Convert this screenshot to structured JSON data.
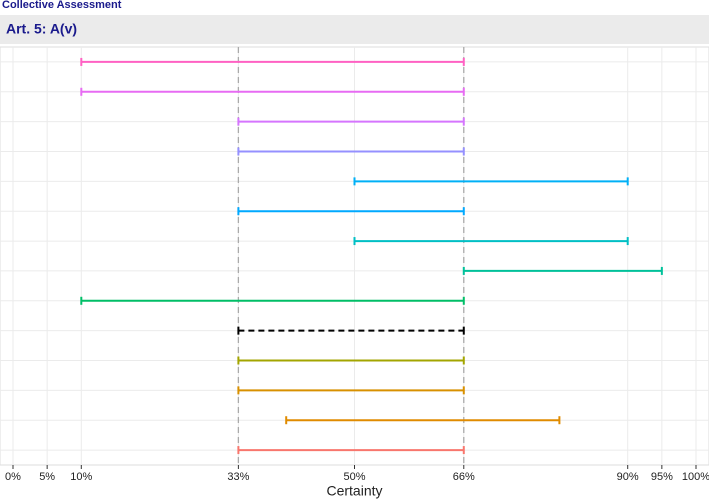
{
  "chart_data": {
    "type": "interval",
    "title": "Collective Assessment",
    "facet": "Art. 5: A(v)",
    "xlabel": "Certainty",
    "xlim": [
      0,
      100
    ],
    "xticks": [
      {
        "value": 0,
        "label": "0%"
      },
      {
        "value": 5,
        "label": "5%"
      },
      {
        "value": 10,
        "label": "10%"
      },
      {
        "value": 33,
        "label": "33%"
      },
      {
        "value": 50,
        "label": "50%"
      },
      {
        "value": 66,
        "label": "66%"
      },
      {
        "value": 90,
        "label": "90%"
      },
      {
        "value": 95,
        "label": "95%"
      },
      {
        "value": 100,
        "label": "100%"
      }
    ],
    "reference_lines": [
      33,
      66
    ],
    "grid": true,
    "intervals": [
      {
        "low": 10,
        "high": 66,
        "color": "#ff61c3"
      },
      {
        "low": 10,
        "high": 66,
        "color": "#e76bf3"
      },
      {
        "low": 33,
        "high": 66,
        "color": "#d575fe"
      },
      {
        "low": 33,
        "high": 66,
        "color": "#9590ff"
      },
      {
        "low": 50,
        "high": 90,
        "color": "#00b0f6"
      },
      {
        "low": 33,
        "high": 66,
        "color": "#00a9ff"
      },
      {
        "low": 50,
        "high": 90,
        "color": "#00bfc4"
      },
      {
        "low": 66,
        "high": 95,
        "color": "#00c19a"
      },
      {
        "low": 10,
        "high": 66,
        "color": "#00be67"
      },
      {
        "low": 33,
        "high": 66,
        "color": "#000000",
        "dashed": true
      },
      {
        "low": 33,
        "high": 66,
        "color": "#a3a500"
      },
      {
        "low": 33,
        "high": 66,
        "color": "#d89000"
      },
      {
        "low": 40,
        "high": 80,
        "color": "#e08b00"
      },
      {
        "low": 33,
        "high": 66,
        "color": "#f8766d"
      }
    ]
  }
}
